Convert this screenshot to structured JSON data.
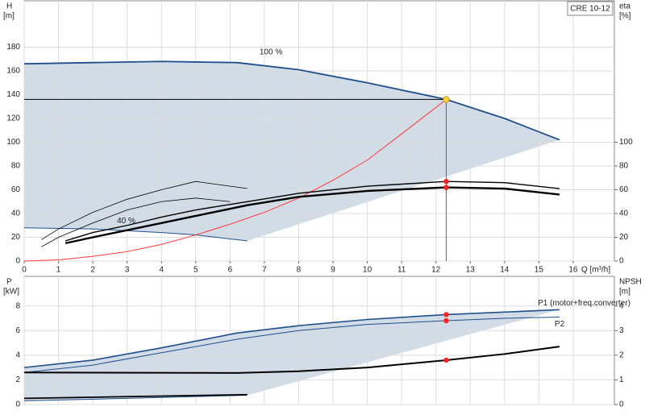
{
  "chart_data": [
    {
      "type": "line",
      "title": "CRE 10-12",
      "y_label": "H",
      "y_unit": "[m]",
      "y2_label": "eta",
      "y2_unit": "[%]",
      "x_label": "Q [m³/h]",
      "xlim": [
        0,
        17.2
      ],
      "xticks": [
        0,
        1,
        2,
        3,
        4,
        5,
        6,
        7,
        8,
        9,
        10,
        11,
        12,
        13,
        14,
        15,
        16
      ],
      "ylim": [
        0,
        219
      ],
      "yticks": [
        0,
        20,
        40,
        60,
        80,
        100,
        120,
        140,
        160,
        180
      ],
      "y2lim": [
        0,
        219
      ],
      "y2ticks": [
        0,
        20,
        40,
        60,
        80,
        100
      ],
      "grid": true,
      "duty_point": {
        "x": 12.3,
        "y": 136,
        "color": "#ffd23a"
      },
      "marker_color": "#ff2020",
      "series": [
        {
          "name": "100 %",
          "color": "#1f4e8c",
          "width": 1.8,
          "x": [
            0,
            2,
            4,
            5,
            6.2,
            8,
            10,
            12.3,
            14,
            15.6
          ],
          "values": [
            166,
            167,
            168,
            167.5,
            167,
            161,
            150,
            136,
            120,
            102
          ]
        },
        {
          "name": "40 %",
          "color": "#1f4e8c",
          "width": 1,
          "x": [
            0,
            2,
            4,
            5,
            6.5
          ],
          "values": [
            28,
            27,
            24,
            22,
            17
          ]
        },
        {
          "color": "#ff3b3b",
          "width": 1,
          "x": [
            0,
            1,
            2,
            3,
            4,
            5,
            6,
            7,
            8,
            9,
            10,
            11,
            12.3
          ],
          "values": [
            0,
            1,
            4,
            8,
            14,
            22,
            31,
            41,
            53,
            68,
            85,
            107,
            136
          ]
        },
        {
          "color": "#000000",
          "width": 0.8,
          "axis": "y2",
          "x": [
            0.5,
            1,
            2,
            3,
            4,
            5,
            6.5
          ],
          "values": [
            18,
            27,
            41,
            52,
            60,
            67,
            61
          ]
        },
        {
          "color": "#000000",
          "width": 0.8,
          "axis": "y2",
          "x": [
            0.5,
            1,
            2,
            3,
            4,
            5,
            6
          ],
          "values": [
            12,
            20,
            32,
            43,
            50,
            53,
            50
          ]
        },
        {
          "color": "#000000",
          "width": 1.4,
          "axis": "y2",
          "duty_marker": true,
          "x": [
            1.2,
            2,
            3,
            4,
            5,
            6.5,
            8,
            10,
            12.3,
            14,
            15.6
          ],
          "values": [
            17,
            24,
            30,
            37,
            43,
            50,
            57,
            63,
            67,
            66,
            61
          ]
        },
        {
          "color": "#000000",
          "width": 2.4,
          "axis": "y2",
          "duty_marker": true,
          "x": [
            1.2,
            2,
            3,
            4,
            5,
            6.5,
            8,
            10,
            12.3,
            14,
            15.6
          ],
          "values": [
            15,
            20,
            26,
            32,
            38,
            47,
            54,
            59,
            62,
            61,
            56
          ]
        }
      ]
    },
    {
      "type": "line",
      "y_label": "P",
      "y_unit": "[kW]",
      "y2_label": "NPSH",
      "y2_unit": "[m]",
      "xlim": [
        0,
        17.2
      ],
      "ylim": [
        0,
        10.4
      ],
      "yticks": [
        0,
        2,
        4,
        6,
        8
      ],
      "y2lim": [
        0,
        5.2
      ],
      "y2ticks": [
        0,
        1,
        2,
        3,
        4
      ],
      "grid": true,
      "duty_point": {
        "x": 12.3
      },
      "marker_color": "#ff2020",
      "series": [
        {
          "name": "P1 (motor+freq.converter)",
          "color": "#1f4e8c",
          "width": 1.6,
          "duty_marker": true,
          "x": [
            0,
            2,
            4,
            6.2,
            8,
            10,
            12.3,
            14,
            15.6
          ],
          "values": [
            3,
            3.6,
            4.6,
            5.8,
            6.4,
            6.9,
            7.3,
            7.5,
            7.7
          ]
        },
        {
          "name": "P2",
          "color": "#1f4e8c",
          "width": 1,
          "duty_marker": true,
          "x": [
            0,
            2,
            4,
            6.2,
            8,
            10,
            12.3,
            14,
            15.6
          ],
          "values": [
            2.6,
            3.2,
            4.2,
            5.3,
            6.0,
            6.5,
            6.8,
            7.0,
            7.1
          ]
        },
        {
          "color": "#1f4e8c",
          "width": 1,
          "x": [
            0,
            3,
            6.5
          ],
          "values": [
            0.3,
            0.5,
            0.75
          ]
        },
        {
          "color": "#000000",
          "width": 1.8,
          "x": [
            0,
            6.5
          ],
          "values": [
            0.5,
            0.8
          ]
        },
        {
          "color": "#000000",
          "width": 2,
          "axis": "y2",
          "duty_marker": true,
          "x": [
            0,
            6.2,
            8,
            10,
            12.3,
            14,
            15.6
          ],
          "values": [
            1.3,
            1.28,
            1.35,
            1.5,
            1.8,
            2.05,
            2.35
          ]
        }
      ]
    }
  ]
}
